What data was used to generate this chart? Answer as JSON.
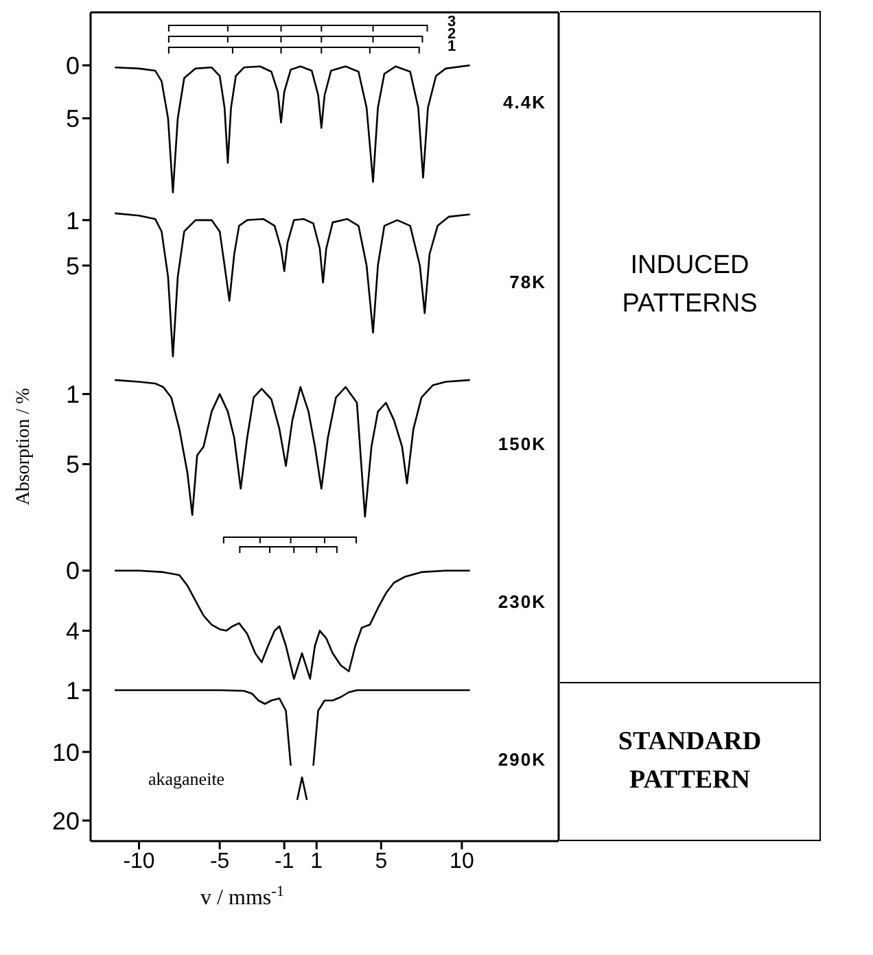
{
  "chart_data": [
    {
      "type": "line",
      "xlim": [
        -13,
        16
      ],
      "ylim": [
        13,
        -5
      ],
      "yticks": [
        0,
        5
      ],
      "tick_labels": "y",
      "annotations": [
        "3",
        "2",
        "1"
      ],
      "x": [
        -11.5,
        -10,
        -9,
        -8.6,
        -8.2,
        -7.9,
        -7.6,
        -7.2,
        -6.5,
        -5.5,
        -5,
        -4.7,
        -4.5,
        -4.3,
        -4,
        -3.5,
        -2.5,
        -1.8,
        -1.4,
        -1.2,
        -1,
        -0.6,
        0,
        0.7,
        1.1,
        1.3,
        1.5,
        1.9,
        2.8,
        3.6,
        4.1,
        4.5,
        4.8,
        5.2,
        5.9,
        6.8,
        7.3,
        7.6,
        7.9,
        8.4,
        9,
        10.5
      ],
      "series": [
        {
          "name": "4.4K",
          "color": "#000000",
          "values": [
            0.2,
            0.3,
            0.5,
            1.5,
            5,
            12,
            5,
            1.2,
            0.3,
            0.2,
            1,
            4,
            9.2,
            4,
            1,
            0.2,
            0.1,
            0.6,
            2.5,
            5.4,
            2.5,
            0.4,
            0.1,
            0.5,
            2.8,
            5.9,
            2.8,
            0.5,
            0.1,
            0.6,
            4,
            11,
            4,
            0.8,
            0.1,
            0.6,
            4,
            10.6,
            4,
            1,
            0.3,
            0
          ]
        }
      ]
    },
    {
      "type": "line",
      "xlim": [
        -13,
        16
      ],
      "ylim": [
        14,
        -0.5
      ],
      "yticks": [
        1,
        5
      ],
      "tick_labels": "y",
      "annotations": [
        "INDUCED PATTERNS"
      ],
      "x": [
        -11.5,
        -10,
        -9,
        -8.6,
        -8.2,
        -7.9,
        -7.6,
        -7.2,
        -6.5,
        -5.5,
        -5,
        -4.7,
        -4.4,
        -4.1,
        -3.8,
        -3.3,
        -2.3,
        -1.6,
        -1.2,
        -1.0,
        -0.8,
        -0.4,
        0.2,
        0.8,
        1.2,
        1.4,
        1.6,
        2.0,
        2.9,
        3.6,
        4.1,
        4.5,
        4.8,
        5.2,
        6.0,
        6.8,
        7.4,
        7.7,
        8.0,
        8.5,
        9.2,
        10.5
      ],
      "series": [
        {
          "name": "78K",
          "color": "#000000",
          "values": [
            0.4,
            0.6,
            0.9,
            2,
            6,
            13,
            6,
            2,
            1,
            1,
            2,
            5,
            8.1,
            4,
            1.5,
            1,
            0.9,
            1.5,
            3.5,
            5.5,
            3,
            1,
            0.9,
            1.3,
            3.5,
            6.5,
            3.5,
            1.2,
            0.9,
            1.5,
            5,
            10.9,
            5,
            1.5,
            1,
            1.5,
            5,
            9.2,
            4,
            1.5,
            0.7,
            0.5
          ]
        }
      ]
    },
    {
      "type": "line",
      "xlim": [
        -13,
        16
      ],
      "ylim": [
        8.5,
        -0.5
      ],
      "yticks": [
        1,
        5
      ],
      "tick_labels": "y",
      "ylabel": "Absorption / %",
      "x": [
        -11.5,
        -10,
        -9,
        -8.5,
        -8,
        -7.5,
        -7,
        -6.7,
        -6.4,
        -6,
        -5.5,
        -5,
        -4.5,
        -4.1,
        -3.7,
        -3.3,
        -2.9,
        -2.4,
        -1.8,
        -1.3,
        -0.9,
        -0.5,
        0,
        0.5,
        0.9,
        1.3,
        1.7,
        2.2,
        2.8,
        3.5,
        4.0,
        4.4,
        4.8,
        5.3,
        5.8,
        6.3,
        6.6,
        7.0,
        7.5,
        8.2,
        9,
        10.5
      ],
      "series": [
        {
          "name": "150K",
          "color": "#000000",
          "values": [
            0.2,
            0.3,
            0.4,
            0.6,
            1.2,
            3,
            5.5,
            7.9,
            4.5,
            4,
            2,
            1.0,
            2,
            3.5,
            6.4,
            3.5,
            1.2,
            0.7,
            1.3,
            3,
            5.1,
            2.5,
            0.6,
            2,
            4,
            6.4,
            3.5,
            1.2,
            0.6,
            1.5,
            8.0,
            4,
            2,
            1.5,
            2.5,
            4,
            6.1,
            3,
            1.2,
            0.5,
            0.3,
            0.2
          ]
        }
      ]
    },
    {
      "type": "line",
      "xlim": [
        -13,
        16
      ],
      "ylim": [
        7.5,
        -3
      ],
      "yticks": [
        0,
        4
      ],
      "tick_labels": "y",
      "x": [
        -11.5,
        -10,
        -8.5,
        -7.5,
        -7,
        -6.5,
        -6,
        -5.5,
        -5,
        -4.6,
        -4.2,
        -3.8,
        -3.3,
        -2.8,
        -2.4,
        -2.0,
        -1.6,
        -1.3,
        -0.9,
        -0.4,
        0.1,
        0.6,
        0.9,
        1.2,
        1.6,
        2.0,
        2.5,
        3.0,
        3.4,
        3.8,
        4.3,
        4.8,
        5.3,
        5.8,
        6.5,
        7.5,
        9,
        10.5
      ],
      "series": [
        {
          "name": "230K",
          "color": "#000000",
          "values": [
            0,
            0,
            0.1,
            0.3,
            1,
            2,
            3,
            3.6,
            3.9,
            4.0,
            3.7,
            3.5,
            4.2,
            5.5,
            6.1,
            5,
            4,
            3.7,
            5,
            7.2,
            5.5,
            7.2,
            5,
            4,
            4.5,
            5.5,
            6.3,
            6.7,
            5,
            3.8,
            3.6,
            2.5,
            1.5,
            0.8,
            0.4,
            0.1,
            0,
            0
          ]
        }
      ]
    },
    {
      "type": "line",
      "xlim": [
        -13,
        16
      ],
      "ylim": [
        23,
        0
      ],
      "yticks": [
        1,
        10,
        20
      ],
      "xticks": [
        -10,
        -5,
        -1,
        1,
        5,
        10
      ],
      "xlabel": "v / mms$^{-1}$",
      "annotations": [
        "akaganeite",
        "STANDARD PATTERN"
      ],
      "x": [
        -11.5,
        -8,
        -5,
        -3.5,
        -3,
        -2.6,
        -2.2,
        -1.8,
        -1.3,
        -0.9,
        -0.6,
        -0.4,
        -0.2,
        0.1,
        0.4,
        0.6,
        0.8,
        1.1,
        1.5,
        2,
        2.5,
        3,
        3.5,
        5,
        8,
        10.5
      ],
      "series": [
        {
          "name": "290K",
          "color": "#000000",
          "values": [
            1,
            1,
            1,
            1.1,
            1.5,
            2.5,
            3,
            2.5,
            2.2,
            4,
            12,
            null,
            17,
            13.7,
            17,
            null,
            12,
            4,
            2.5,
            2.5,
            2,
            1.3,
            1,
            1,
            1,
            1
          ]
        }
      ]
    }
  ]
}
